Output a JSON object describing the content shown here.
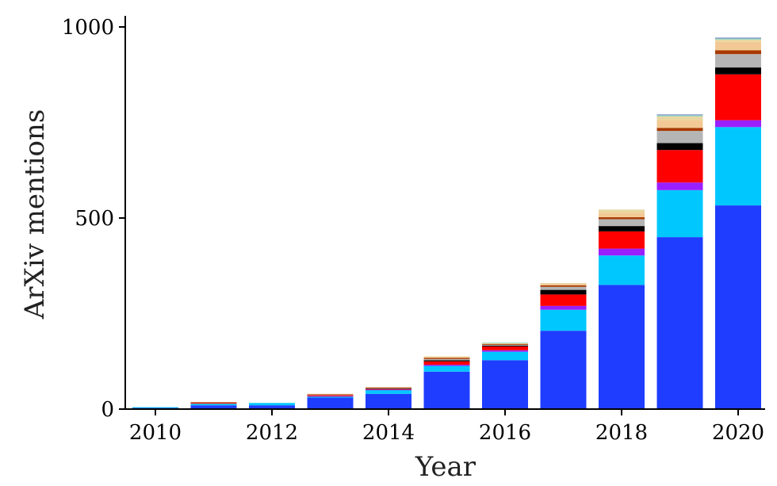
{
  "chart_data": {
    "type": "bar",
    "stacked": true,
    "title": "",
    "xlabel": "Year",
    "ylabel": "ArXiv mentions",
    "ylim": [
      0,
      1000
    ],
    "yticks": [
      "0",
      "500",
      "1000"
    ],
    "xtick_labels": [
      "2010",
      "2012",
      "2014",
      "2016",
      "2018",
      "2020"
    ],
    "categories": [
      "2010",
      "2011",
      "2012",
      "2013",
      "2014",
      "2015",
      "2016",
      "2017",
      "2018",
      "2019",
      "2020"
    ],
    "legend": "none",
    "grid": false,
    "series": [
      {
        "color": "#1f3dff",
        "values": [
          3,
          10,
          10,
          30,
          40,
          98,
          128,
          205,
          325,
          450,
          533
        ]
      },
      {
        "color": "#00c8ff",
        "values": [
          2,
          4,
          6,
          3,
          10,
          15,
          22,
          55,
          77,
          123,
          205
        ]
      },
      {
        "color": "#9a1fff",
        "values": [
          0,
          0,
          0,
          1,
          1,
          3,
          4,
          10,
          18,
          20,
          18
        ]
      },
      {
        "color": "#ff0000",
        "values": [
          0,
          2,
          0,
          3,
          2,
          9,
          10,
          30,
          45,
          85,
          120
        ]
      },
      {
        "color": "#000000",
        "values": [
          0,
          0,
          0,
          0,
          1,
          3,
          2,
          12,
          14,
          18,
          18
        ]
      },
      {
        "color": "#b5b5b5",
        "values": [
          0,
          0,
          0,
          1,
          1,
          3,
          2,
          8,
          18,
          32,
          35
        ]
      },
      {
        "color": "#a83800",
        "values": [
          0,
          2,
          0,
          1,
          2,
          3,
          2,
          4,
          5,
          8,
          10
        ]
      },
      {
        "color": "#f2c994",
        "values": [
          0,
          0,
          0,
          1,
          1,
          3,
          2,
          4,
          12,
          20,
          22
        ]
      },
      {
        "color": "#e8d6a0",
        "values": [
          0,
          0,
          0,
          0,
          0,
          1,
          1,
          2,
          8,
          10,
          6
        ]
      },
      {
        "color": "#8fd6c4",
        "values": [
          0,
          0,
          0,
          0,
          0,
          0,
          1,
          0,
          0,
          3,
          3
        ]
      },
      {
        "color": "#6e7ab8",
        "values": [
          0,
          0,
          0,
          0,
          0,
          0,
          0,
          0,
          0,
          2,
          2
        ]
      }
    ]
  }
}
